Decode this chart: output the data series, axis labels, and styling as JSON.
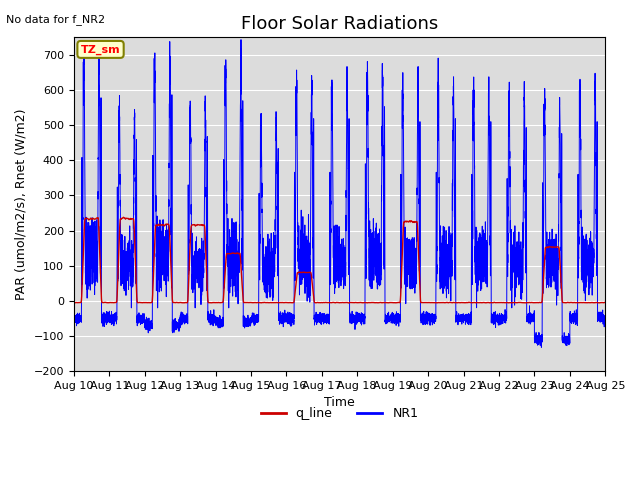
{
  "title": "Floor Solar Radiations",
  "subtitle": "No data for f_NR2",
  "xlabel": "Time",
  "ylabel": "PAR (umol/m2/s), Rnet (W/m2)",
  "ylim": [
    -200,
    750
  ],
  "yticks": [
    -200,
    -100,
    0,
    100,
    200,
    300,
    400,
    500,
    600,
    700
  ],
  "xtick_labels": [
    "Aug 10",
    "Aug 11",
    "Aug 12",
    "Aug 13",
    "Aug 14",
    "Aug 15",
    "Aug 16",
    "Aug 17",
    "Aug 18",
    "Aug 19",
    "Aug 20",
    "Aug 21",
    "Aug 22",
    "Aug 23",
    "Aug 24",
    "Aug 25"
  ],
  "color_NR1": "#0000FF",
  "color_qline": "#CC0000",
  "legend_entries": [
    "q_line",
    "NR1"
  ],
  "annotation_text": "TZ_sm",
  "bg_color": "#DCDCDC",
  "n_days": 15,
  "ppd": 480,
  "seed": 42,
  "peak_NR1": [
    680,
    540,
    690,
    550,
    670,
    510,
    610,
    610,
    650,
    600,
    610,
    600,
    580,
    560,
    600
  ],
  "peak_qline": [
    260,
    260,
    240,
    240,
    150,
    5,
    90,
    5,
    5,
    250,
    5,
    5,
    5,
    170,
    5
  ],
  "night_NR1": [
    -50,
    -50,
    -70,
    -50,
    -60,
    -50,
    -50,
    -50,
    -50,
    -50,
    -50,
    -50,
    -50,
    -110,
    -50
  ],
  "qline_night": [
    -5,
    -5,
    -5,
    -5,
    -5,
    -5,
    -5,
    -5,
    -5,
    -5,
    -5,
    -5,
    -5,
    -5,
    -5
  ],
  "title_fontsize": 13,
  "label_fontsize": 9,
  "tick_fontsize": 8
}
